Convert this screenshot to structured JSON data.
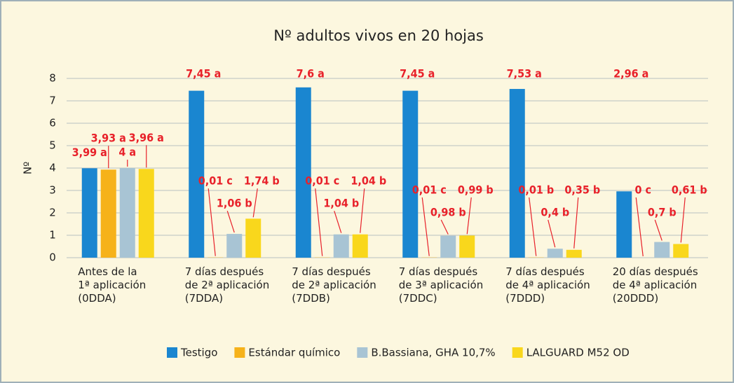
{
  "chart_data": {
    "type": "bar",
    "title": "Nº adultos vivos en 20 hojas",
    "y_label": "Nº",
    "categories": [
      "Antes de la\n1ª aplicación\n(0DDA)",
      "7 días después\nde 2ª aplicación\n(7DDA)",
      "7 días después\nde 2ª aplicación\n(7DDB)",
      "7 días después\nde 3ª aplicación\n(7DDC)",
      "7 días después\nde 4ª aplicación\n(7DDD)",
      "20 días después\nde 4ª aplicación\n(20DDD)"
    ],
    "series": [
      {
        "name": "Testigo",
        "color": "#1a86d0",
        "values": [
          3.99,
          7.45,
          7.6,
          7.45,
          7.53,
          2.96
        ],
        "value_labels": [
          "3,99 a",
          "7,45 a",
          "7,6 a",
          "7,45 a",
          "7,53 a",
          "2,96 a"
        ]
      },
      {
        "name": "Estándar químico",
        "color": "#f6b21a",
        "values": [
          3.93,
          0.01,
          0.01,
          0.01,
          0.01,
          0
        ],
        "value_labels": [
          "3,93 a",
          "0,01 c",
          "0,01 c",
          "0,01 c",
          "0,01 b",
          "0 c"
        ]
      },
      {
        "name": "B.Bassiana, GHA 10,7%",
        "color": "#a8c4d4",
        "values": [
          4,
          1.06,
          1.04,
          0.98,
          0.4,
          0.7
        ],
        "value_labels": [
          "4 a",
          "1,06 b",
          "1,04 b",
          "0,98 b",
          "0,4 b",
          "0,7 b"
        ]
      },
      {
        "name": "LALGUARD M52 OD",
        "color": "#f9d71c",
        "values": [
          3.96,
          1.74,
          1.04,
          0.99,
          0.35,
          0.61
        ],
        "value_labels": [
          "3,96 a",
          "1,74 b",
          "1,04 b",
          "0,99 b",
          "0,35 b",
          "0,61 b"
        ]
      }
    ],
    "ylim": [
      0,
      8
    ],
    "yticks": [
      0,
      1,
      2,
      3,
      4,
      5,
      6,
      7,
      8
    ],
    "grid": true,
    "legend": "bottom"
  }
}
